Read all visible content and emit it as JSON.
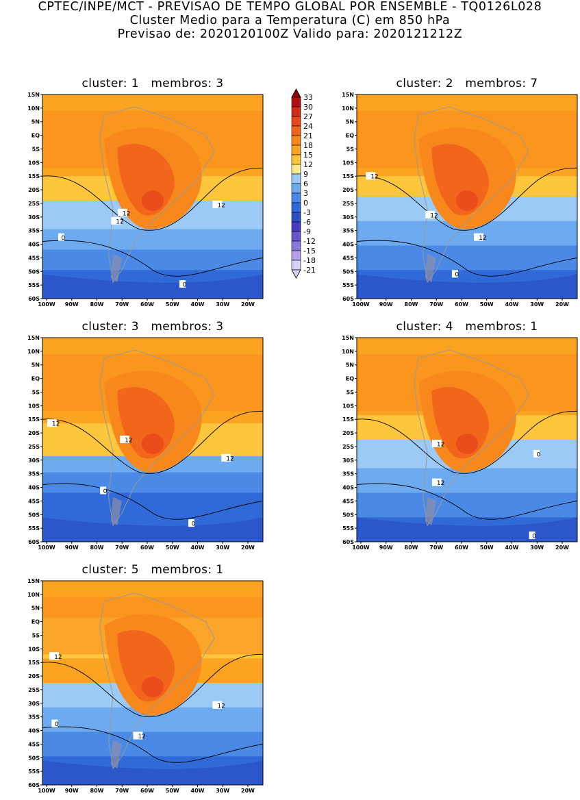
{
  "header": {
    "line1": "CPTEC/INPE/MCT - PREVISAO DE TEMPO GLOBAL POR ENSEMBLE - TQ0126L028",
    "line2": "Cluster Medio para a Temperatura (C) em 850 hPa",
    "line3": "Previsao de: 2020120100Z   Valido para: 2020121212Z"
  },
  "chart_data": {
    "type": "contour-map",
    "variable": "Temperatura (C) em 850 hPa",
    "xaxis": {
      "ticks": [
        "100W",
        "90W",
        "80W",
        "70W",
        "60W",
        "50W",
        "40W",
        "30W",
        "20W"
      ],
      "range": [
        -101,
        -12
      ]
    },
    "yaxis": {
      "ticks": [
        "15N",
        "10N",
        "5N",
        "EQ",
        "5S",
        "10S",
        "15S",
        "20S",
        "25S",
        "30S",
        "35S",
        "40S",
        "45S",
        "50S",
        "55S",
        "60S"
      ],
      "range": [
        -60,
        15
      ]
    },
    "colorbar": {
      "levels": [
        "33",
        "30",
        "27",
        "24",
        "21",
        "18",
        "15",
        "12",
        "9",
        "6",
        "3",
        "0",
        "-3",
        "-6",
        "-9",
        "-12",
        "-15",
        "-18",
        "-21"
      ],
      "colors": [
        "#8b0000",
        "#b01010",
        "#d42a1c",
        "#e8461c",
        "#f2661c",
        "#f8881c",
        "#fca421",
        "#fdc63c",
        "#fde98c",
        "#9ccaf6",
        "#6eaaf0",
        "#4a8ae6",
        "#2f6ad8",
        "#2a50c4",
        "#4a3cc0",
        "#6a55cc",
        "#8a78dc",
        "#b3a2ea",
        "#dad0f6"
      ]
    },
    "panels": [
      {
        "title": "cluster: 1   membros: 3",
        "contour_labels": [
          "12",
          "12",
          "12",
          "0",
          "0"
        ]
      },
      {
        "title": "cluster: 2   membros: 7",
        "contour_labels": [
          "12",
          "12",
          "12",
          "0"
        ]
      },
      {
        "title": "cluster: 3   membros: 3",
        "contour_labels": [
          "12",
          "12",
          "12",
          "0",
          "0"
        ]
      },
      {
        "title": "cluster: 4   membros: 1",
        "contour_labels": [
          "12",
          "12",
          "0",
          "0"
        ]
      },
      {
        "title": "cluster: 5   membros: 1",
        "contour_labels": [
          "12",
          "12",
          "12",
          "0"
        ]
      }
    ]
  }
}
